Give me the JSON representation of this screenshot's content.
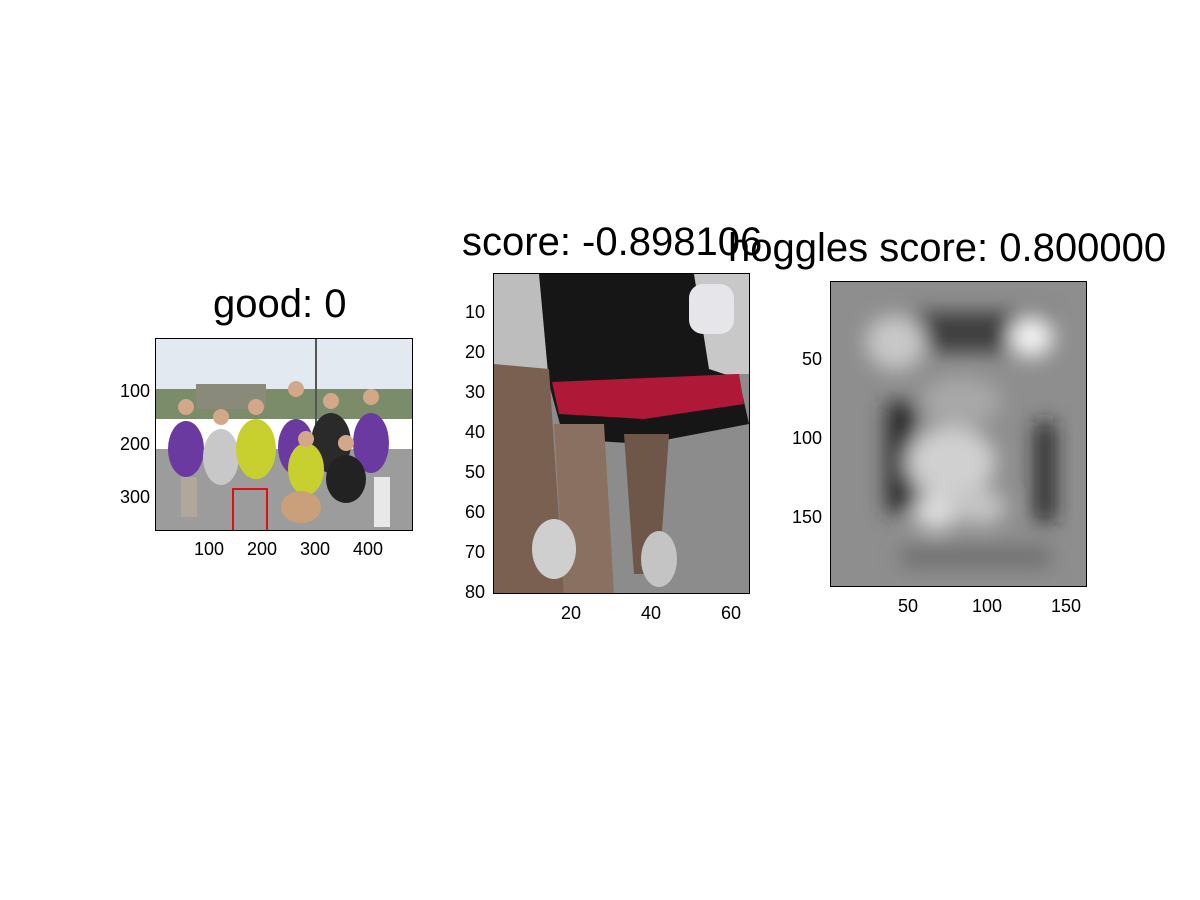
{
  "panels": [
    {
      "title": "good: 0",
      "image_desc_icon": "group-photo",
      "x_ticks": [
        "100",
        "200",
        "300",
        "400"
      ],
      "y_ticks": [
        "100",
        "200",
        "300"
      ]
    },
    {
      "title": "score: -0.898106",
      "image_desc_icon": "cropped-legs-photo",
      "x_ticks": [
        "20",
        "40",
        "60"
      ],
      "y_ticks": [
        "10",
        "20",
        "30",
        "40",
        "50",
        "60",
        "70",
        "80"
      ]
    },
    {
      "title": "hoggles score: 0.800000",
      "image_desc_icon": "grayscale-hog-visualization",
      "x_ticks": [
        "50",
        "100",
        "150"
      ],
      "y_ticks": [
        "50",
        "100",
        "150"
      ]
    }
  ],
  "colors": {
    "bbox": "#e01010",
    "sky": "#dfe6ee",
    "ground": "#9a9a9a"
  }
}
